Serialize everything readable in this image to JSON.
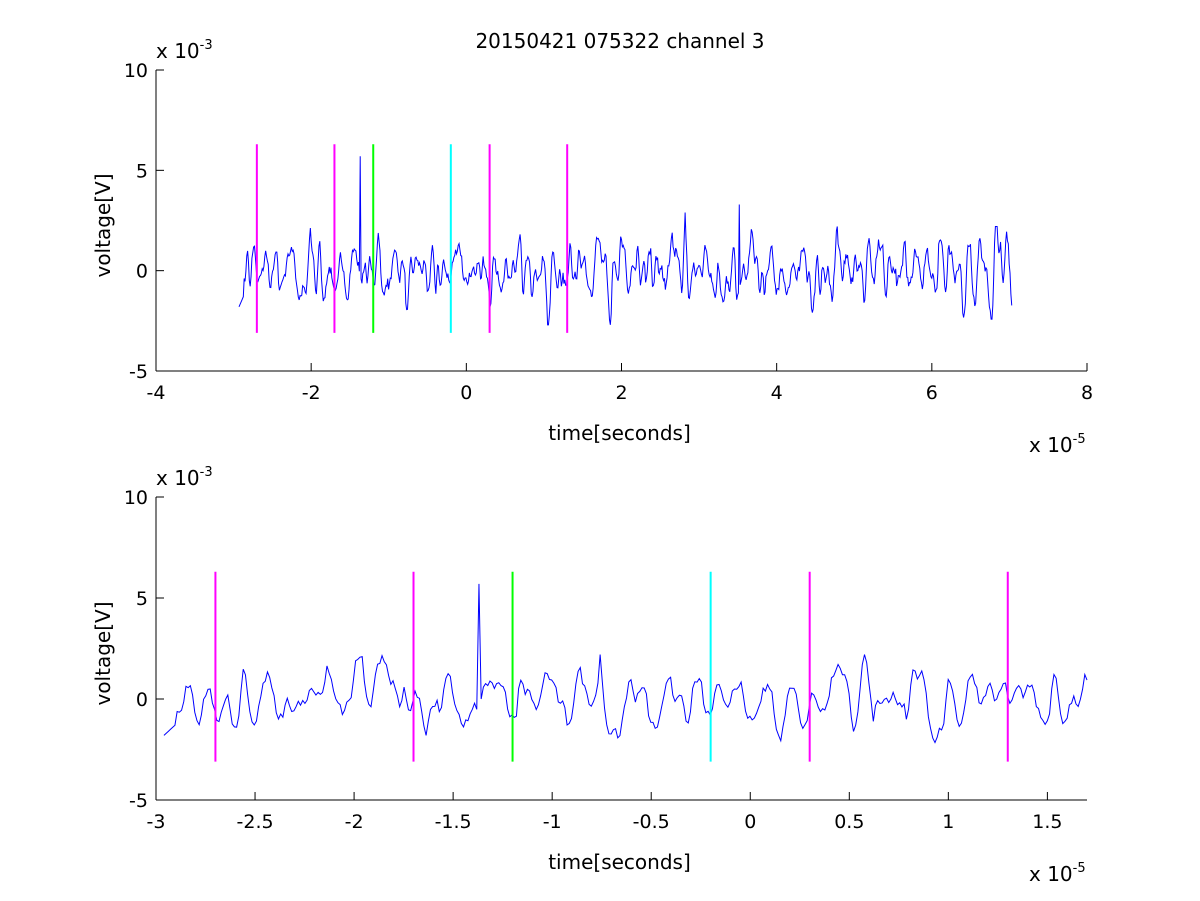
{
  "figure": {
    "title": "20150421 075322 channel 3",
    "background": "#ffffff",
    "signal_color": "#0000ff"
  },
  "chart_data": [
    {
      "type": "line",
      "title": "20150421 075322 channel 3",
      "xlabel": "time[seconds]",
      "ylabel": "voltage[V]",
      "xlim": [
        -4e-05,
        8e-05
      ],
      "ylim": [
        -0.005,
        0.01
      ],
      "x_ticks": [
        -4,
        -2,
        0,
        2,
        4,
        6,
        8
      ],
      "x_tick_labels": [
        "-4",
        "-2",
        "0",
        "2",
        "4",
        "6",
        "8"
      ],
      "y_ticks": [
        -5,
        0,
        5,
        10
      ],
      "y_tick_labels": [
        "-5",
        "0",
        "5",
        "10"
      ],
      "x_exponent": {
        "base": "x 10",
        "power": "-5"
      },
      "y_exponent": {
        "base": "x 10",
        "power": "-3"
      },
      "grid": false,
      "signal": {
        "x_start": -2.93e-05,
        "x_end": 7.03e-05,
        "n_points": 900,
        "baseline": 0.0,
        "spike": {
          "x": -1.37e-05,
          "y": 0.0057
        },
        "notable_peaks": [
          {
            "x": 2.82e-05,
            "y": 0.0029
          },
          {
            "x": 3.52e-05,
            "y": 0.0033
          }
        ]
      },
      "markers": [
        {
          "x": -2.7e-05,
          "color": "#ff00ff",
          "y_top": 0.0063,
          "y_bottom": -0.0031
        },
        {
          "x": -1.7e-05,
          "color": "#ff00ff",
          "y_top": 0.0063,
          "y_bottom": -0.0031
        },
        {
          "x": -1.2e-05,
          "color": "#00ff00",
          "y_top": 0.0063,
          "y_bottom": -0.0031
        },
        {
          "x": -2e-06,
          "color": "#00ffff",
          "y_top": 0.0063,
          "y_bottom": -0.0031
        },
        {
          "x": 3e-06,
          "color": "#ff00ff",
          "y_top": 0.0063,
          "y_bottom": -0.0031
        },
        {
          "x": 1.3e-05,
          "color": "#ff00ff",
          "y_top": 0.0063,
          "y_bottom": -0.0031
        }
      ]
    },
    {
      "type": "line",
      "title": "",
      "xlabel": "time[seconds]",
      "ylabel": "voltage[V]",
      "xlim": [
        -3e-05,
        1.7e-05
      ],
      "ylim": [
        -0.005,
        0.01
      ],
      "x_ticks": [
        -3,
        -2.5,
        -2,
        -1.5,
        -1,
        -0.5,
        0,
        0.5,
        1,
        1.5
      ],
      "x_tick_labels": [
        "-3",
        "-2.5",
        "-2",
        "-1.5",
        "-1",
        "-0.5",
        "0",
        "0.5",
        "1",
        "1.5"
      ],
      "y_ticks": [
        -5,
        0,
        5,
        10
      ],
      "y_tick_labels": [
        "-5",
        "0",
        "5",
        "10"
      ],
      "x_exponent": {
        "base": "x 10",
        "power": "-5"
      },
      "y_exponent": {
        "base": "x 10",
        "power": "-3"
      },
      "grid": false,
      "signal": {
        "x_start": -2.96e-05,
        "x_end": 1.7e-05,
        "n_points": 420,
        "baseline": 0.0,
        "spike": {
          "x": -1.37e-05,
          "y": 0.0057
        },
        "notable_peaks": [
          {
            "x": -1.96e-05,
            "y": 0.0021
          },
          {
            "x": -7.6e-06,
            "y": 0.0022
          }
        ]
      },
      "markers": [
        {
          "x": -2.7e-05,
          "color": "#ff00ff",
          "y_top": 0.0063,
          "y_bottom": -0.0031
        },
        {
          "x": -1.7e-05,
          "color": "#ff00ff",
          "y_top": 0.0063,
          "y_bottom": -0.0031
        },
        {
          "x": -1.2e-05,
          "color": "#00ff00",
          "y_top": 0.0063,
          "y_bottom": -0.0031
        },
        {
          "x": -2e-06,
          "color": "#00ffff",
          "y_top": 0.0063,
          "y_bottom": -0.0031
        },
        {
          "x": 3e-06,
          "color": "#ff00ff",
          "y_top": 0.0063,
          "y_bottom": -0.0031
        },
        {
          "x": 1.3e-05,
          "color": "#ff00ff",
          "y_top": 0.0063,
          "y_bottom": -0.0031
        }
      ]
    }
  ]
}
